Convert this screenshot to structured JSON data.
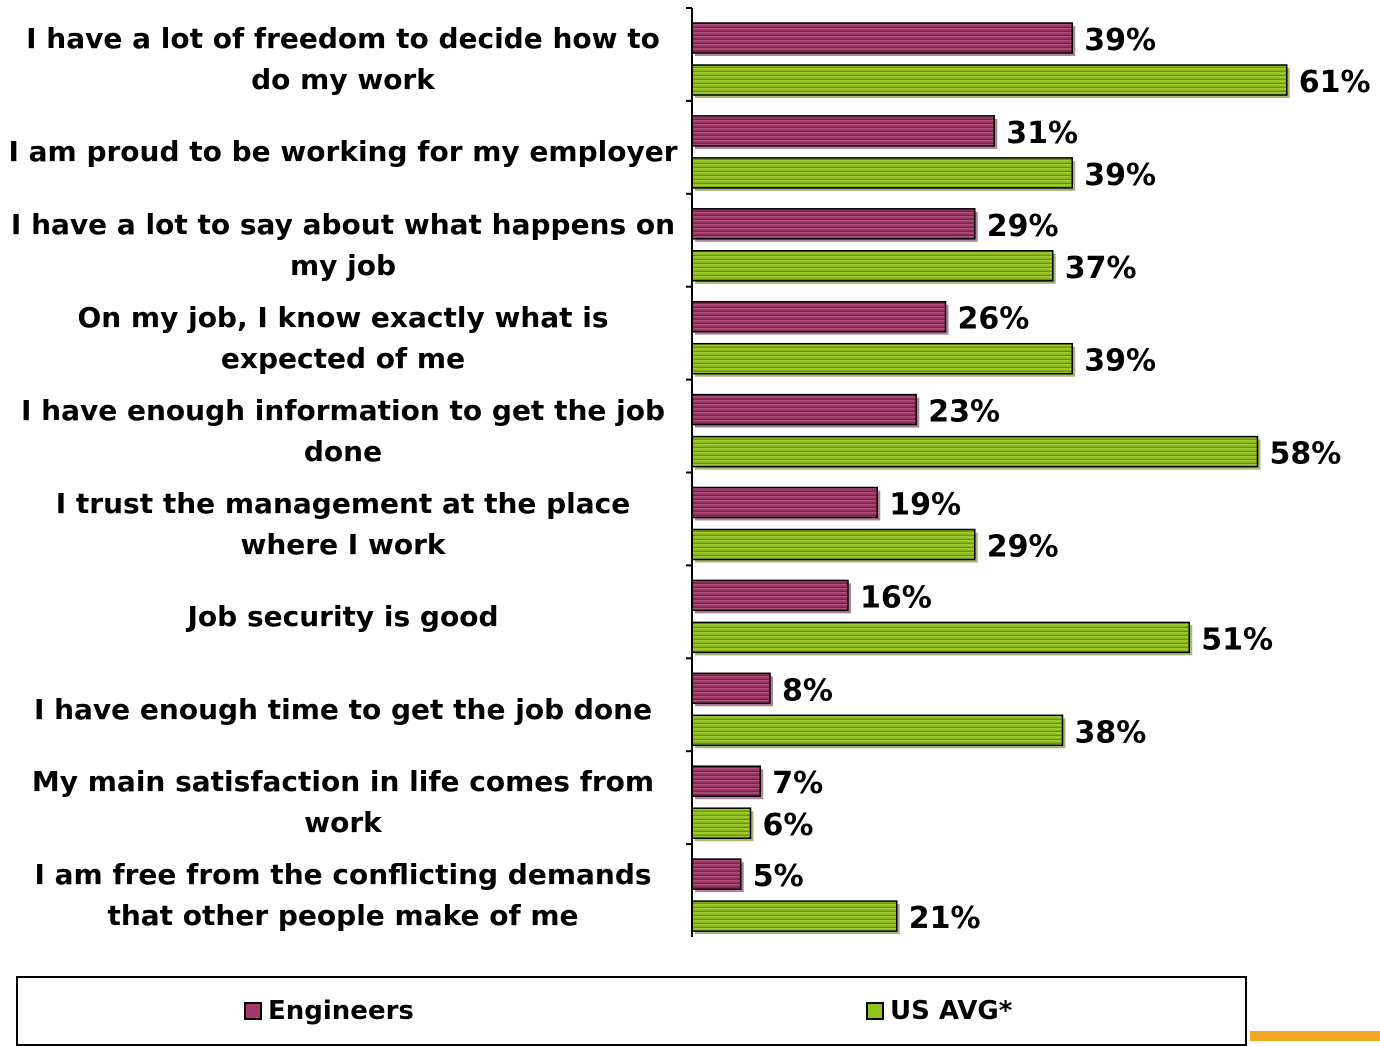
{
  "colors": {
    "engineers": "#a33a6c",
    "engineers_dark": "#6b1f45",
    "us_avg": "#92c21c",
    "us_avg_dark": "#5a7d0a",
    "accent": "#f5a623"
  },
  "chart_data": {
    "type": "bar",
    "orientation": "horizontal",
    "title": "",
    "xlabel": "",
    "ylabel": "",
    "xlim": [
      0,
      62
    ],
    "grid": false,
    "legend_position": "bottom",
    "value_suffix": "%",
    "categories": [
      "I have a lot of freedom to decide how to do my work",
      "I am proud to be working for my employer",
      "I have a lot to say about what happens on my job",
      "On my job, I know exactly what is expected of me",
      "I have enough information to get the job done",
      "I trust the management at the place where I work",
      "Job security is good",
      "I have enough time to get the job done",
      "My main satisfaction in life comes from work",
      "I am free from the conflicting demands that other people make of me"
    ],
    "series": [
      {
        "name": "Engineers",
        "values": [
          39,
          31,
          29,
          26,
          23,
          19,
          16,
          8,
          7,
          5
        ]
      },
      {
        "name": "US AVG*",
        "values": [
          61,
          39,
          37,
          39,
          58,
          29,
          51,
          38,
          6,
          21
        ]
      }
    ]
  }
}
